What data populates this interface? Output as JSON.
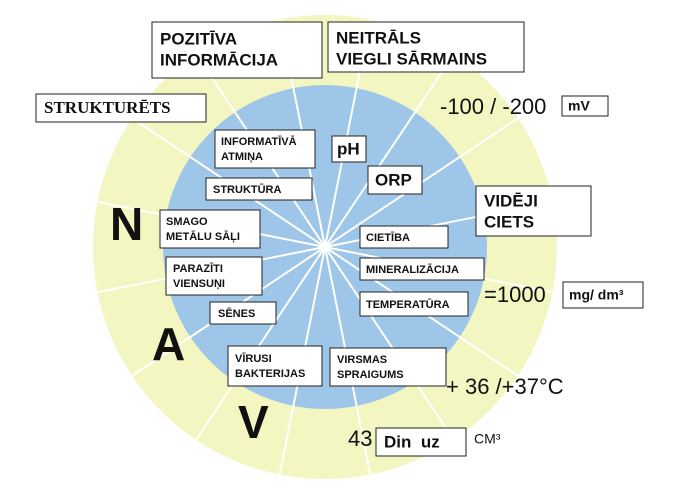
{
  "top_left": [
    "POZITĪVA",
    "INFORMĀCIJA"
  ],
  "top_right": [
    "NEITRĀLS",
    "VIEGLI SĀRMAINS"
  ],
  "structured": "STRUKTURĒTS",
  "orp_value": "-100 / -200",
  "orp_unit": "mV",
  "ph": "pH",
  "orp": "ORP",
  "hardness_level": [
    "VIDĒJI",
    "CIETS"
  ],
  "left_items": [
    [
      "INFORMATĪVĀ",
      "ATMIŅA"
    ],
    [
      "STRUKTŪRA"
    ],
    [
      "SMAGO",
      "METĀLU SĀĻI"
    ],
    [
      "PARAZĪTI",
      "VIENSUŅI"
    ],
    [
      "SĒNES"
    ],
    [
      "VĪRUSI",
      "BAKTERIJAS"
    ]
  ],
  "right_items": [
    "CIETĪBA",
    "MINERALIZĀCIJA",
    "TEMPERATŪRA"
  ],
  "surface_tension": [
    "VIRSMAS",
    "SPRAIGUMS"
  ],
  "letters": [
    "N",
    "A",
    "V"
  ],
  "mineral_value": "=1000",
  "mineral_unit": "mg/ dm³",
  "temperature_value": "+ 36 /+37°C",
  "tension_value": "43",
  "tension_unit": "Din  uz",
  "tension_unit2": "CM³"
}
